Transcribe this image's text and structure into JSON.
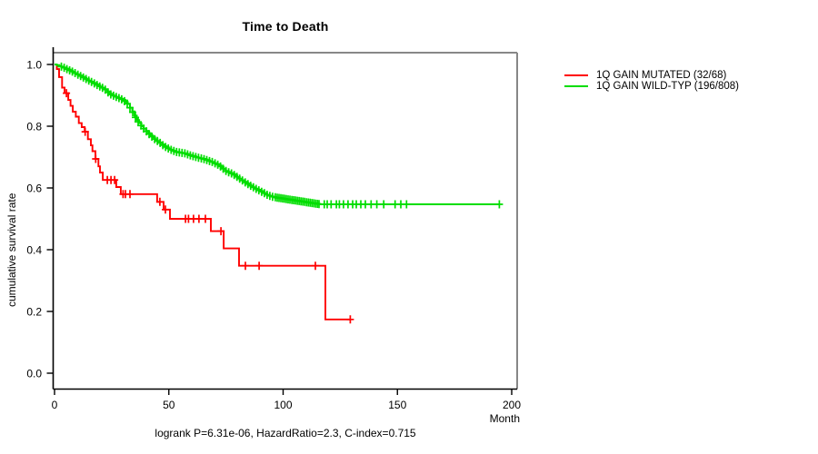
{
  "title": "Time to Death",
  "footer": {
    "stats": "logrank P=6.31e-06, HazardRatio=2.3, C-index=0.715"
  },
  "chart_data": {
    "type": "line",
    "subtype": "kaplan_meier_step_survival",
    "title": "Time to Death",
    "xlabel": "Month",
    "ylabel": "cumulative survival rate",
    "xlim": [
      0,
      202
    ],
    "ylim": [
      0.0,
      1.0
    ],
    "grid": false,
    "legend_position": "right-outside",
    "footer_annotation": "logrank P=6.31e-06, HazardRatio=2.3, C-index=0.715",
    "x_ticks": [
      {
        "value": 0,
        "label": "0"
      },
      {
        "value": 50,
        "label": "50"
      },
      {
        "value": 100,
        "label": "100"
      },
      {
        "value": 150,
        "label": "150"
      },
      {
        "value": 200,
        "label": "200"
      }
    ],
    "y_ticks": [
      {
        "value": 0.0,
        "label": "0.0"
      },
      {
        "value": 0.2,
        "label": "0.2"
      },
      {
        "value": 0.4,
        "label": "0.4"
      },
      {
        "value": 0.6,
        "label": "0.6"
      },
      {
        "value": 0.8,
        "label": "0.8"
      },
      {
        "value": 1.0,
        "label": "1.0"
      }
    ],
    "series": [
      {
        "id": "mutated",
        "name": "1Q GAIN MUTATED (32/68)",
        "events": 32,
        "n": 68,
        "color": "#ff0000",
        "width": 1.9,
        "substeps": false,
        "points": [
          [
            0,
            1.0
          ],
          [
            1.0,
            0.985
          ],
          [
            2.0,
            0.959
          ],
          [
            3.3,
            0.925
          ],
          [
            4.4,
            0.907
          ],
          [
            6.0,
            0.885
          ],
          [
            7.0,
            0.866
          ],
          [
            8.0,
            0.847
          ],
          [
            9.3,
            0.831
          ],
          [
            10.6,
            0.81
          ],
          [
            11.9,
            0.797
          ],
          [
            13.2,
            0.782
          ],
          [
            14.6,
            0.758
          ],
          [
            15.9,
            0.738
          ],
          [
            16.6,
            0.719
          ],
          [
            17.9,
            0.694
          ],
          [
            19.2,
            0.67
          ],
          [
            19.9,
            0.65
          ],
          [
            21.1,
            0.626
          ],
          [
            27.0,
            0.603
          ],
          [
            29.0,
            0.58
          ],
          [
            44.9,
            0.555
          ],
          [
            47.7,
            0.53
          ],
          [
            50.5,
            0.5
          ],
          [
            68.4,
            0.46
          ],
          [
            74.0,
            0.404
          ],
          [
            80.7,
            0.348
          ],
          [
            118.5,
            0.174
          ]
        ],
        "end_time": 129.4,
        "censor_times": [
          5.2,
          13.4,
          18,
          23.1,
          24.7,
          26.3,
          30,
          31,
          33,
          46.1,
          48.5,
          57.3,
          58.6,
          60.8,
          63.2,
          66,
          72.8,
          83.5,
          89.5,
          114.1,
          129.4
        ]
      },
      {
        "id": "wildtype",
        "name": "1Q GAIN WILD-TYP (196/808)",
        "events": 196,
        "n": 808,
        "color": "#00dd00",
        "width": 2.0,
        "substeps": true,
        "points": [
          [
            0,
            1.0
          ],
          [
            2,
            0.996
          ],
          [
            4,
            0.99
          ],
          [
            6,
            0.983
          ],
          [
            8,
            0.976
          ],
          [
            10,
            0.968
          ],
          [
            12,
            0.96
          ],
          [
            14,
            0.952
          ],
          [
            16,
            0.944
          ],
          [
            18,
            0.936
          ],
          [
            20,
            0.928
          ],
          [
            22,
            0.92
          ],
          [
            24,
            0.905
          ],
          [
            26,
            0.898
          ],
          [
            28,
            0.892
          ],
          [
            30,
            0.885
          ],
          [
            32,
            0.872
          ],
          [
            34,
            0.848
          ],
          [
            36,
            0.82
          ],
          [
            38,
            0.8
          ],
          [
            40,
            0.785
          ],
          [
            42,
            0.77
          ],
          [
            44,
            0.757
          ],
          [
            46,
            0.747
          ],
          [
            48,
            0.735
          ],
          [
            50,
            0.727
          ],
          [
            53,
            0.717
          ],
          [
            57,
            0.712
          ],
          [
            60,
            0.704
          ],
          [
            63,
            0.698
          ],
          [
            66,
            0.692
          ],
          [
            69,
            0.684
          ],
          [
            72,
            0.673
          ],
          [
            75,
            0.655
          ],
          [
            78,
            0.645
          ],
          [
            81,
            0.63
          ],
          [
            84,
            0.615
          ],
          [
            87,
            0.602
          ],
          [
            90,
            0.59
          ],
          [
            93,
            0.578
          ],
          [
            95,
            0.572
          ],
          [
            97,
            0.569
          ],
          [
            116.3,
            0.547
          ]
        ],
        "end_time": 194.6,
        "censor_times": [
          3,
          4.2,
          5.4,
          6.6,
          7.8,
          9,
          10.2,
          11.4,
          12.6,
          13.8,
          15,
          16.2,
          17.4,
          18.6,
          19.8,
          21,
          22.2,
          23.4,
          24.6,
          25.8,
          27,
          28.2,
          29.4,
          30.6,
          31.8,
          33,
          34.2,
          35.4,
          36.6,
          37.8,
          39,
          40.2,
          41.4,
          42.6,
          43.8,
          45,
          46.2,
          47.4,
          48.6,
          49.8,
          51,
          52.2,
          53.4,
          54.6,
          55.8,
          57,
          58.2,
          59.4,
          60.6,
          61.8,
          63,
          64.2,
          65.4,
          66.6,
          67.8,
          69,
          70.2,
          71.4,
          72.6,
          73.8,
          75,
          76.2,
          77.4,
          78.6,
          79.8,
          81,
          82.2,
          83.4,
          84.6,
          85.8,
          87,
          88.2,
          89.4,
          90.6,
          91.8,
          93,
          94.2,
          95.4,
          96.6,
          97.4,
          98.2,
          99,
          99.8,
          100.6,
          101.4,
          102.2,
          103,
          103.8,
          104.6,
          105.4,
          106.2,
          107,
          107.8,
          108.6,
          109.4,
          110.2,
          111,
          111.8,
          112.6,
          113.4,
          114.2,
          115,
          115.7,
          118,
          119.3,
          121,
          123.3,
          124.6,
          126.4,
          128.4,
          130.4,
          132,
          134,
          136,
          138.5,
          141,
          144,
          149,
          151.5,
          154,
          194.6
        ]
      }
    ]
  }
}
